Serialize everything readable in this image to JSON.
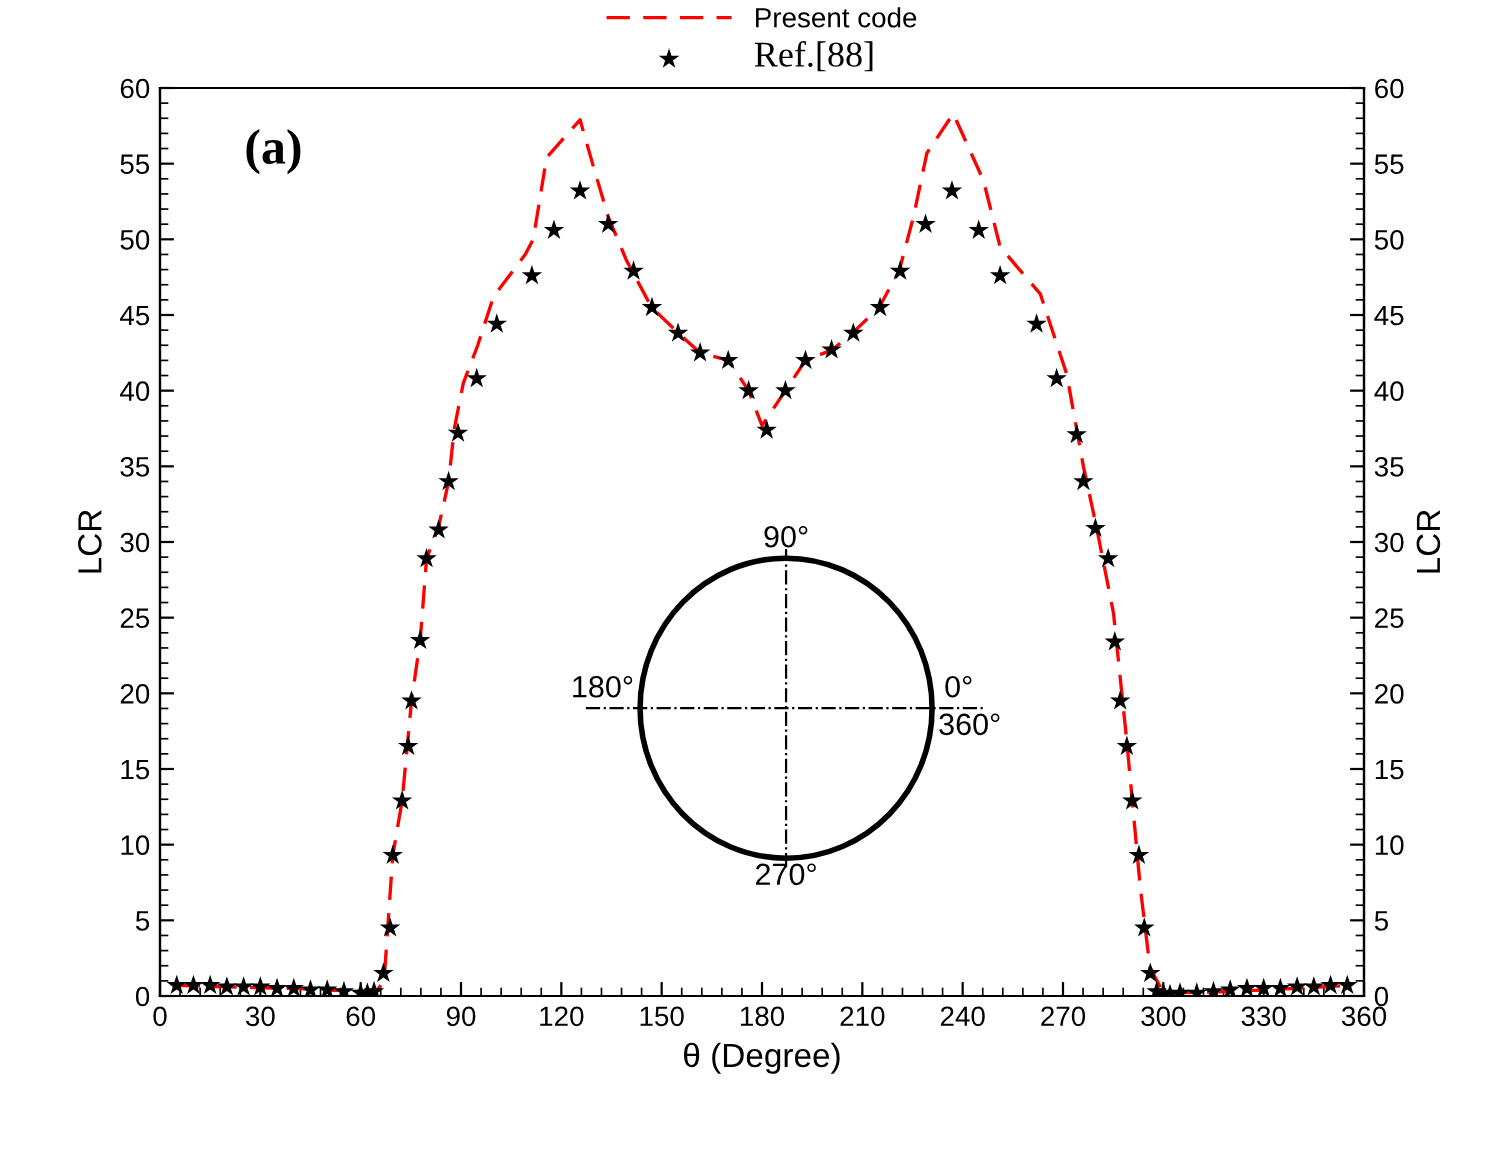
{
  "chart_data": {
    "type": "line",
    "xlabel": "θ (Degree)",
    "ylabel": "LCR",
    "y2label": "LCR",
    "xlim": [
      0,
      360
    ],
    "xticks": [
      0,
      30,
      60,
      90,
      120,
      150,
      180,
      210,
      240,
      270,
      300,
      330,
      360
    ],
    "ylim": [
      0,
      60
    ],
    "yticks": [
      0,
      5,
      10,
      15,
      20,
      25,
      30,
      35,
      40,
      45,
      50,
      55,
      60
    ],
    "y2lim": [
      0,
      60
    ],
    "y2ticks": [
      0,
      5,
      10,
      15,
      20,
      25,
      30,
      35,
      40,
      45,
      50,
      55,
      60
    ],
    "grid": false,
    "legend": "top",
    "annotations": [
      "(a)",
      "90°",
      "180°",
      "0°",
      "360°",
      "270°"
    ],
    "series": [
      {
        "name": "Present code",
        "color": "#ff0000",
        "line_style": "dashed",
        "marker": "none",
        "x": [
          5,
          20,
          40,
          60,
          65,
          67,
          69.6,
          72.4,
          75.2,
          77.8,
          79.7,
          83.3,
          86.3,
          88,
          90.7,
          95,
          99.7,
          109.2,
          111.6,
          115.6,
          125.6,
          129.6,
          134,
          139.5,
          147,
          155,
          161.5,
          170,
          176,
          180,
          187,
          193,
          201,
          207,
          215,
          221,
          225.3,
          229.3,
          237.2,
          246.2,
          251.2,
          256.2,
          263.2,
          271.1,
          276.1,
          280,
          285.1,
          289,
          293.1,
          296,
          300,
          320,
          340,
          355
        ],
        "values": [
          0.7,
          0.6,
          0.5,
          0.3,
          0.4,
          1,
          9.3,
          12.9,
          19.5,
          23.5,
          28.9,
          31,
          34,
          37.5,
          40.5,
          43,
          46.2,
          49,
          50,
          55.4,
          57.9,
          54.8,
          51.5,
          48.6,
          45.5,
          43.8,
          42.5,
          42,
          40,
          37.7,
          40,
          42,
          42.7,
          43.8,
          45.5,
          47.9,
          51.5,
          55.7,
          58.3,
          53.9,
          49.5,
          48.2,
          46.4,
          41.1,
          35,
          31,
          25.3,
          17,
          7.2,
          1.9,
          0.2,
          0.3,
          0.5,
          0.7
        ]
      },
      {
        "name": "Ref.[88]",
        "type": "scatter",
        "color": "#000000",
        "marker": "star",
        "x": [
          5,
          10,
          15,
          20,
          25,
          30,
          35,
          40,
          45,
          50,
          55,
          60,
          62,
          64,
          66.8,
          68.8,
          69.6,
          72.4,
          74.2,
          75.2,
          77.8,
          79.7,
          83.3,
          86.3,
          89.1,
          94.7,
          100.7,
          111.2,
          117.8,
          125.6,
          134,
          141.6,
          147.1,
          154.9,
          161.5,
          169.9,
          176,
          181.4,
          187,
          193,
          200.8,
          207.3,
          215.3,
          221.3,
          228.9,
          236.8,
          244.8,
          251.2,
          262.1,
          268.1,
          274.1,
          276.1,
          279.7,
          283.5,
          285.5,
          287.1,
          289.1,
          290.7,
          292.7,
          294.3,
          296.1,
          298,
          300,
          302,
          305,
          310,
          315,
          320,
          325,
          330,
          335,
          340,
          345,
          350,
          355
        ],
        "values": [
          0.7,
          0.7,
          0.7,
          0.6,
          0.6,
          0.6,
          0.5,
          0.5,
          0.4,
          0.4,
          0.3,
          0.2,
          0.2,
          0.3,
          1.5,
          4.5,
          9.3,
          12.9,
          16.5,
          19.5,
          23.5,
          28.9,
          30.8,
          34,
          37.2,
          40.8,
          44.4,
          47.6,
          50.6,
          53.2,
          51,
          47.9,
          45.5,
          43.8,
          42.5,
          42,
          40,
          37.4,
          40,
          42,
          42.7,
          43.8,
          45.5,
          47.9,
          51,
          53.2,
          50.6,
          47.6,
          44.4,
          40.8,
          37.1,
          34,
          30.9,
          28.9,
          23.4,
          19.5,
          16.5,
          12.9,
          9.3,
          4.5,
          1.5,
          0.3,
          0.2,
          0.1,
          0.2,
          0.2,
          0.3,
          0.4,
          0.5,
          0.5,
          0.5,
          0.6,
          0.6,
          0.7,
          0.7
        ]
      }
    ]
  }
}
